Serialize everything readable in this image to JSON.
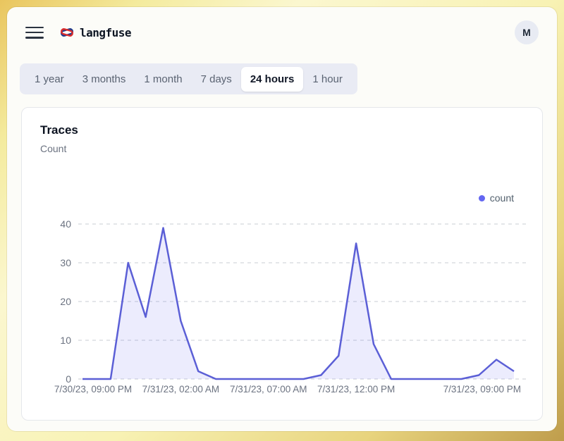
{
  "header": {
    "brand": "langfuse",
    "avatar_initial": "M"
  },
  "time_range_tabs": {
    "options": [
      "1 year",
      "3 months",
      "1 month",
      "7 days",
      "24 hours",
      "1 hour"
    ],
    "active": "24 hours",
    "active_index": 4
  },
  "card": {
    "title": "Traces",
    "subtitle": "Count"
  },
  "chart_data": {
    "type": "area",
    "title": "Traces",
    "ylabel": "Count",
    "x_interval": "1 hour",
    "series": [
      {
        "name": "count",
        "color": "#6366f1",
        "values": [
          0,
          0,
          30,
          16,
          39,
          15,
          2,
          0,
          0,
          0,
          0,
          0,
          0,
          1,
          6,
          35,
          9,
          0,
          0,
          0,
          0,
          0,
          1,
          5,
          2
        ]
      }
    ],
    "x_ticks": [
      {
        "index": 0,
        "label": "7/30/23, 09:00 PM"
      },
      {
        "index": 5,
        "label": "7/31/23, 02:00 AM"
      },
      {
        "index": 10,
        "label": "7/31/23, 07:00 AM"
      },
      {
        "index": 15,
        "label": "7/31/23, 12:00 PM"
      },
      {
        "index": 24,
        "label": "7/31/23, 09:00 PM"
      }
    ],
    "y_ticks": [
      0,
      10,
      20,
      30,
      40
    ],
    "ylim": [
      0,
      40
    ],
    "grid": "horizontal-dashed",
    "legend_position": "top-right"
  },
  "colors": {
    "line": "#5b5fd6",
    "area_fill": "rgba(99,102,241,0.12)",
    "gridline": "#c9cdd3",
    "axis_text": "#6b7280",
    "accent": "#6366f1"
  }
}
